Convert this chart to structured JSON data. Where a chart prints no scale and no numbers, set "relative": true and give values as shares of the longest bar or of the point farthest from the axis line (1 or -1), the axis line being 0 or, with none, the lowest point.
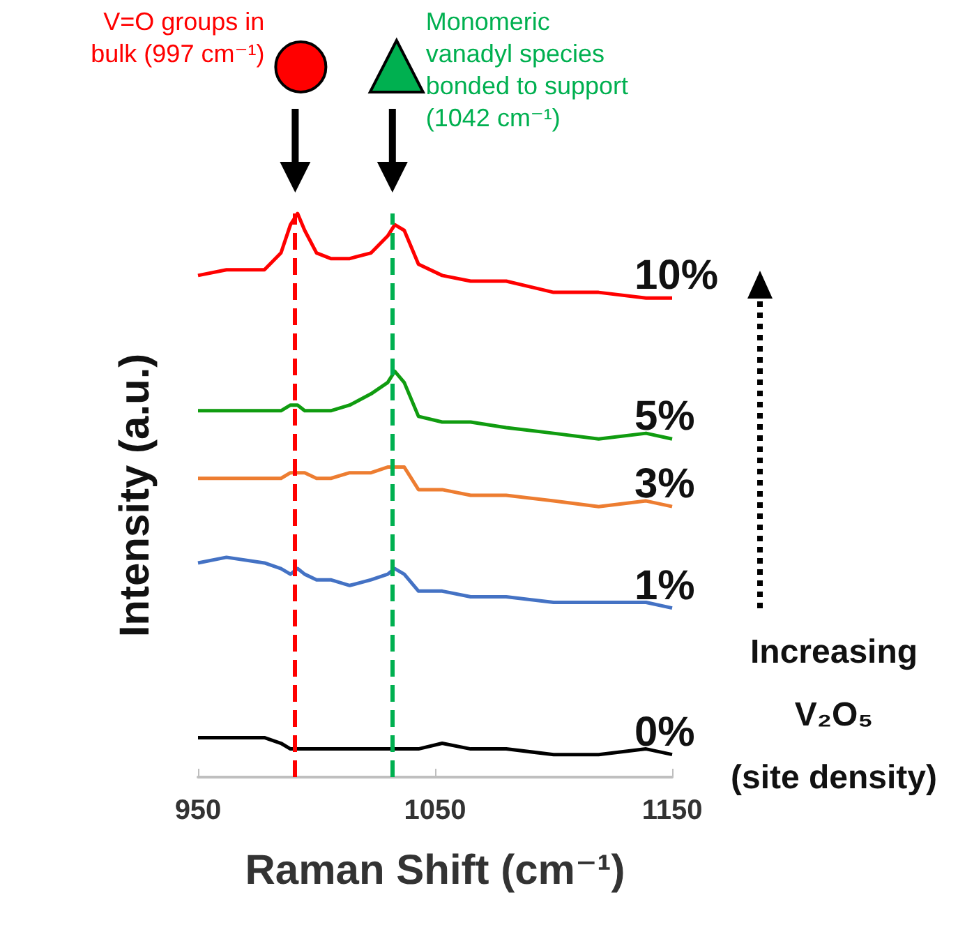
{
  "chart_data": {
    "type": "line",
    "relative": true,
    "xlabel": "Raman Shift (cm⁻¹)",
    "ylabel": "Intensity (a.u.)",
    "x": [
      950,
      962,
      978,
      985,
      989,
      992,
      995,
      1000,
      1006,
      1014,
      1023,
      1030,
      1033,
      1037,
      1043,
      1053,
      1065,
      1080,
      1100,
      1119,
      1139,
      1150
    ],
    "xlim": [
      950,
      1150
    ],
    "xticks": [
      950,
      1050,
      1150
    ],
    "series": [
      {
        "name": "10%",
        "color": "#ff0000",
        "values": [
          0.89,
          0.9,
          0.9,
          0.93,
          0.98,
          1.0,
          0.97,
          0.93,
          0.92,
          0.92,
          0.93,
          0.96,
          0.98,
          0.97,
          0.91,
          0.89,
          0.88,
          0.88,
          0.86,
          0.86,
          0.85,
          0.85
        ]
      },
      {
        "name": "5%",
        "color": "#109c10",
        "values": [
          0.65,
          0.65,
          0.65,
          0.65,
          0.66,
          0.66,
          0.65,
          0.65,
          0.65,
          0.66,
          0.68,
          0.7,
          0.72,
          0.7,
          0.64,
          0.63,
          0.63,
          0.62,
          0.61,
          0.6,
          0.61,
          0.6
        ]
      },
      {
        "name": "3%",
        "color": "#ed7d31",
        "values": [
          0.53,
          0.53,
          0.53,
          0.53,
          0.54,
          0.54,
          0.54,
          0.53,
          0.53,
          0.54,
          0.54,
          0.55,
          0.55,
          0.55,
          0.51,
          0.51,
          0.5,
          0.5,
          0.49,
          0.48,
          0.49,
          0.48
        ]
      },
      {
        "name": "1%",
        "color": "#4472c4",
        "values": [
          0.38,
          0.39,
          0.38,
          0.37,
          0.36,
          0.37,
          0.36,
          0.35,
          0.35,
          0.34,
          0.35,
          0.36,
          0.37,
          0.36,
          0.33,
          0.33,
          0.32,
          0.32,
          0.31,
          0.31,
          0.31,
          0.3
        ]
      },
      {
        "name": "0%",
        "color": "#000000",
        "values": [
          0.07,
          0.07,
          0.07,
          0.06,
          0.05,
          0.05,
          0.05,
          0.05,
          0.05,
          0.05,
          0.05,
          0.05,
          0.05,
          0.05,
          0.05,
          0.06,
          0.05,
          0.05,
          0.04,
          0.04,
          0.05,
          0.04
        ]
      }
    ],
    "ref_lines": [
      {
        "axis": "x",
        "value": 991,
        "label": "V=O groups in\nbulk (997 cm⁻¹)",
        "color": "#ff0000",
        "line_style": "dashed"
      },
      {
        "axis": "x",
        "value": 1032,
        "label": "Monomeric\nvanadyl species\nbonded to support\n(1042 cm⁻¹)",
        "color": "#00b050",
        "line_style": "dashed"
      }
    ],
    "annotations": [
      "Increasing\nV₂O₅\n(site density)"
    ],
    "marker": "none",
    "line_style": "solid",
    "grid": false
  }
}
